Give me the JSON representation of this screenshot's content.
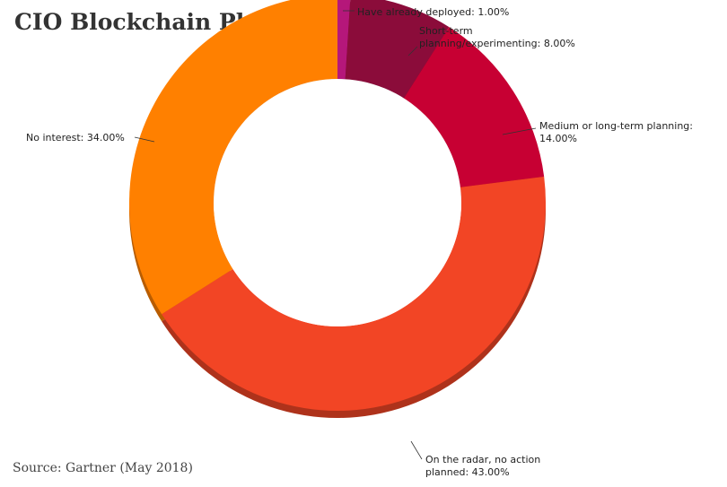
{
  "chart_data": {
    "type": "pie",
    "title": "CIO Blockchain Plans",
    "source": "Source: Gartner (May 2018)",
    "slices": [
      {
        "label": "Have already deployed",
        "value": 1.0,
        "text": [
          "Have already deployed: 1.00%"
        ],
        "color": "#b5177a"
      },
      {
        "label": "Short-term planning/experimenting",
        "value": 8.0,
        "text": [
          "Short-term",
          "planning/experimenting: 8.00%"
        ],
        "color": "#8b0c3a"
      },
      {
        "label": "Medium or long-term planning",
        "value": 14.0,
        "text": [
          "Medium or long-term planning:",
          "14.00%"
        ],
        "color": "#c70033"
      },
      {
        "label": "On the radar, no action planned",
        "value": 43.0,
        "text": [
          "On the radar, no action",
          "planned: 43.00%"
        ],
        "color": "#f24525"
      },
      {
        "label": "No interest",
        "value": 34.0,
        "text": [
          "No interest: 34.00%"
        ],
        "color": "#ff8000"
      }
    ]
  }
}
